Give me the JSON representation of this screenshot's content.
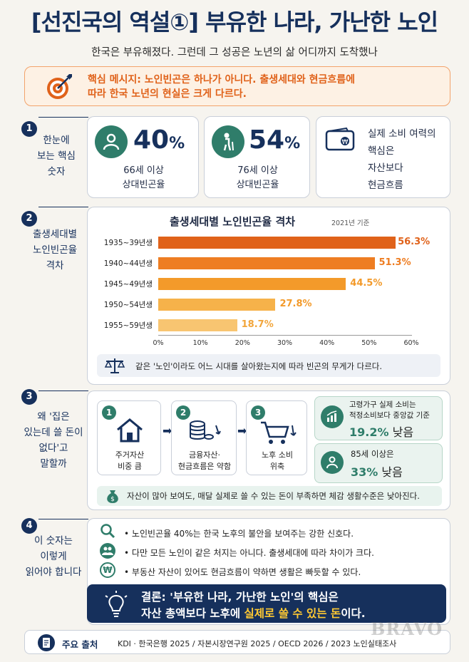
{
  "header": {
    "title": "[선진국의 역설①] 부유한 나라, 가난한 노인",
    "subtitle": "한국은 부유해졌다. 그런데 그 성공은 노년의 삶 어디까지 도착했나"
  },
  "key_message": {
    "line1": "핵심 메시지: 노인빈곤은 하나가 아니다. 출생세대와 현금흐름에",
    "line2": "따라 한국 노년의 현실은 크게 다르다."
  },
  "section1": {
    "num": "1",
    "label": [
      "한눈에",
      "보는 핵심",
      "숫자"
    ],
    "card1": {
      "value": "40",
      "unit": "%",
      "cap1": "66세 이상",
      "cap2": "상대빈곤율"
    },
    "card2": {
      "value": "54",
      "unit": "%",
      "cap1": "76세 이상",
      "cap2": "상대빈곤율"
    },
    "card3": {
      "l1": "실제 소비 여력의",
      "l2": "핵심은",
      "l3": "자산보다",
      "l4": "현금흐름"
    }
  },
  "section2": {
    "num": "2",
    "label": [
      "출생세대별",
      "노인빈곤율",
      "격차"
    ],
    "note": "같은 '노인'이라도 어느 시대를 살아왔는지에 따라 빈곤의 무게가 다르다."
  },
  "chart_data": {
    "type": "bar",
    "orientation": "horizontal",
    "title": "출생세대별  노인빈곤율 격차",
    "subtitle": "2021년 기준",
    "categories": [
      "1935~39년생",
      "1940~44년생",
      "1945~49년생",
      "1950~54년생",
      "1955~59년생"
    ],
    "values": [
      56.3,
      51.3,
      44.5,
      27.8,
      18.7
    ],
    "value_labels": [
      "56.3%",
      "51.3%",
      "44.5%",
      "27.8%",
      "18.7%"
    ],
    "colors": [
      "#e0621a",
      "#ee7d22",
      "#f39a2a",
      "#f6b24a",
      "#f8c571"
    ],
    "xlim": [
      0,
      60
    ],
    "xticks": [
      "0%",
      "10%",
      "20%",
      "30%",
      "40%",
      "50%",
      "60%"
    ],
    "grid": false
  },
  "section3": {
    "num": "3",
    "label": [
      "왜 '집은",
      "있는데 쓸 돈이",
      "없다'고",
      "말할까"
    ],
    "steps": [
      {
        "num": "1",
        "l1": "주거자산",
        "l2": "비중 큼"
      },
      {
        "num": "2",
        "l1": "금융자산·",
        "l2": "현금흐름은 약함"
      },
      {
        "num": "3",
        "l1": "노후 소비",
        "l2": "위축"
      }
    ],
    "stat1": {
      "l1": "고령가구 실제 소비는",
      "l2": "적정소비보다 중앙값 기준",
      "value": "19.2%",
      "suffix": " 낮음"
    },
    "stat2": {
      "l1": "85세 이상은",
      "value": "33%",
      "suffix": " 낮음"
    },
    "note": "자산이 많아 보여도, 매달 실제로 쓸 수 있는 돈이 부족하면 체감 생활수준은 낮아진다."
  },
  "section4": {
    "num": "4",
    "label": [
      "이 숫자는",
      "이렇게",
      "읽어야 합니다"
    ],
    "bullets": [
      "노인빈곤율 40%는 한국 노후의 불안을 보여주는 강한 신호다.",
      "다만 모든 노인이 같은 처지는 아니다. 출생세대에 따라 차이가 크다.",
      "부동산 자산이 있어도 현금흐름이 약하면 생활은 빠듯할 수 있다."
    ],
    "conclusion": {
      "l1": "결론: '부유한 나라, 가난한 노인'의 핵심은",
      "l2a": "자산 총액보다 노후에 ",
      "l2b": "실제로 쓸 수 있는 돈",
      "l2c": "이다."
    }
  },
  "source": {
    "label": "주요 출처",
    "text": "KDI · 한국은행 2025 / 자본시장연구원 2025 / OECD 2026 / 2023 노인실태조사"
  },
  "watermark": "BRAVO",
  "colors": {
    "navy": "#16305c",
    "orange": "#e0621a",
    "green": "#2f7d6a"
  }
}
